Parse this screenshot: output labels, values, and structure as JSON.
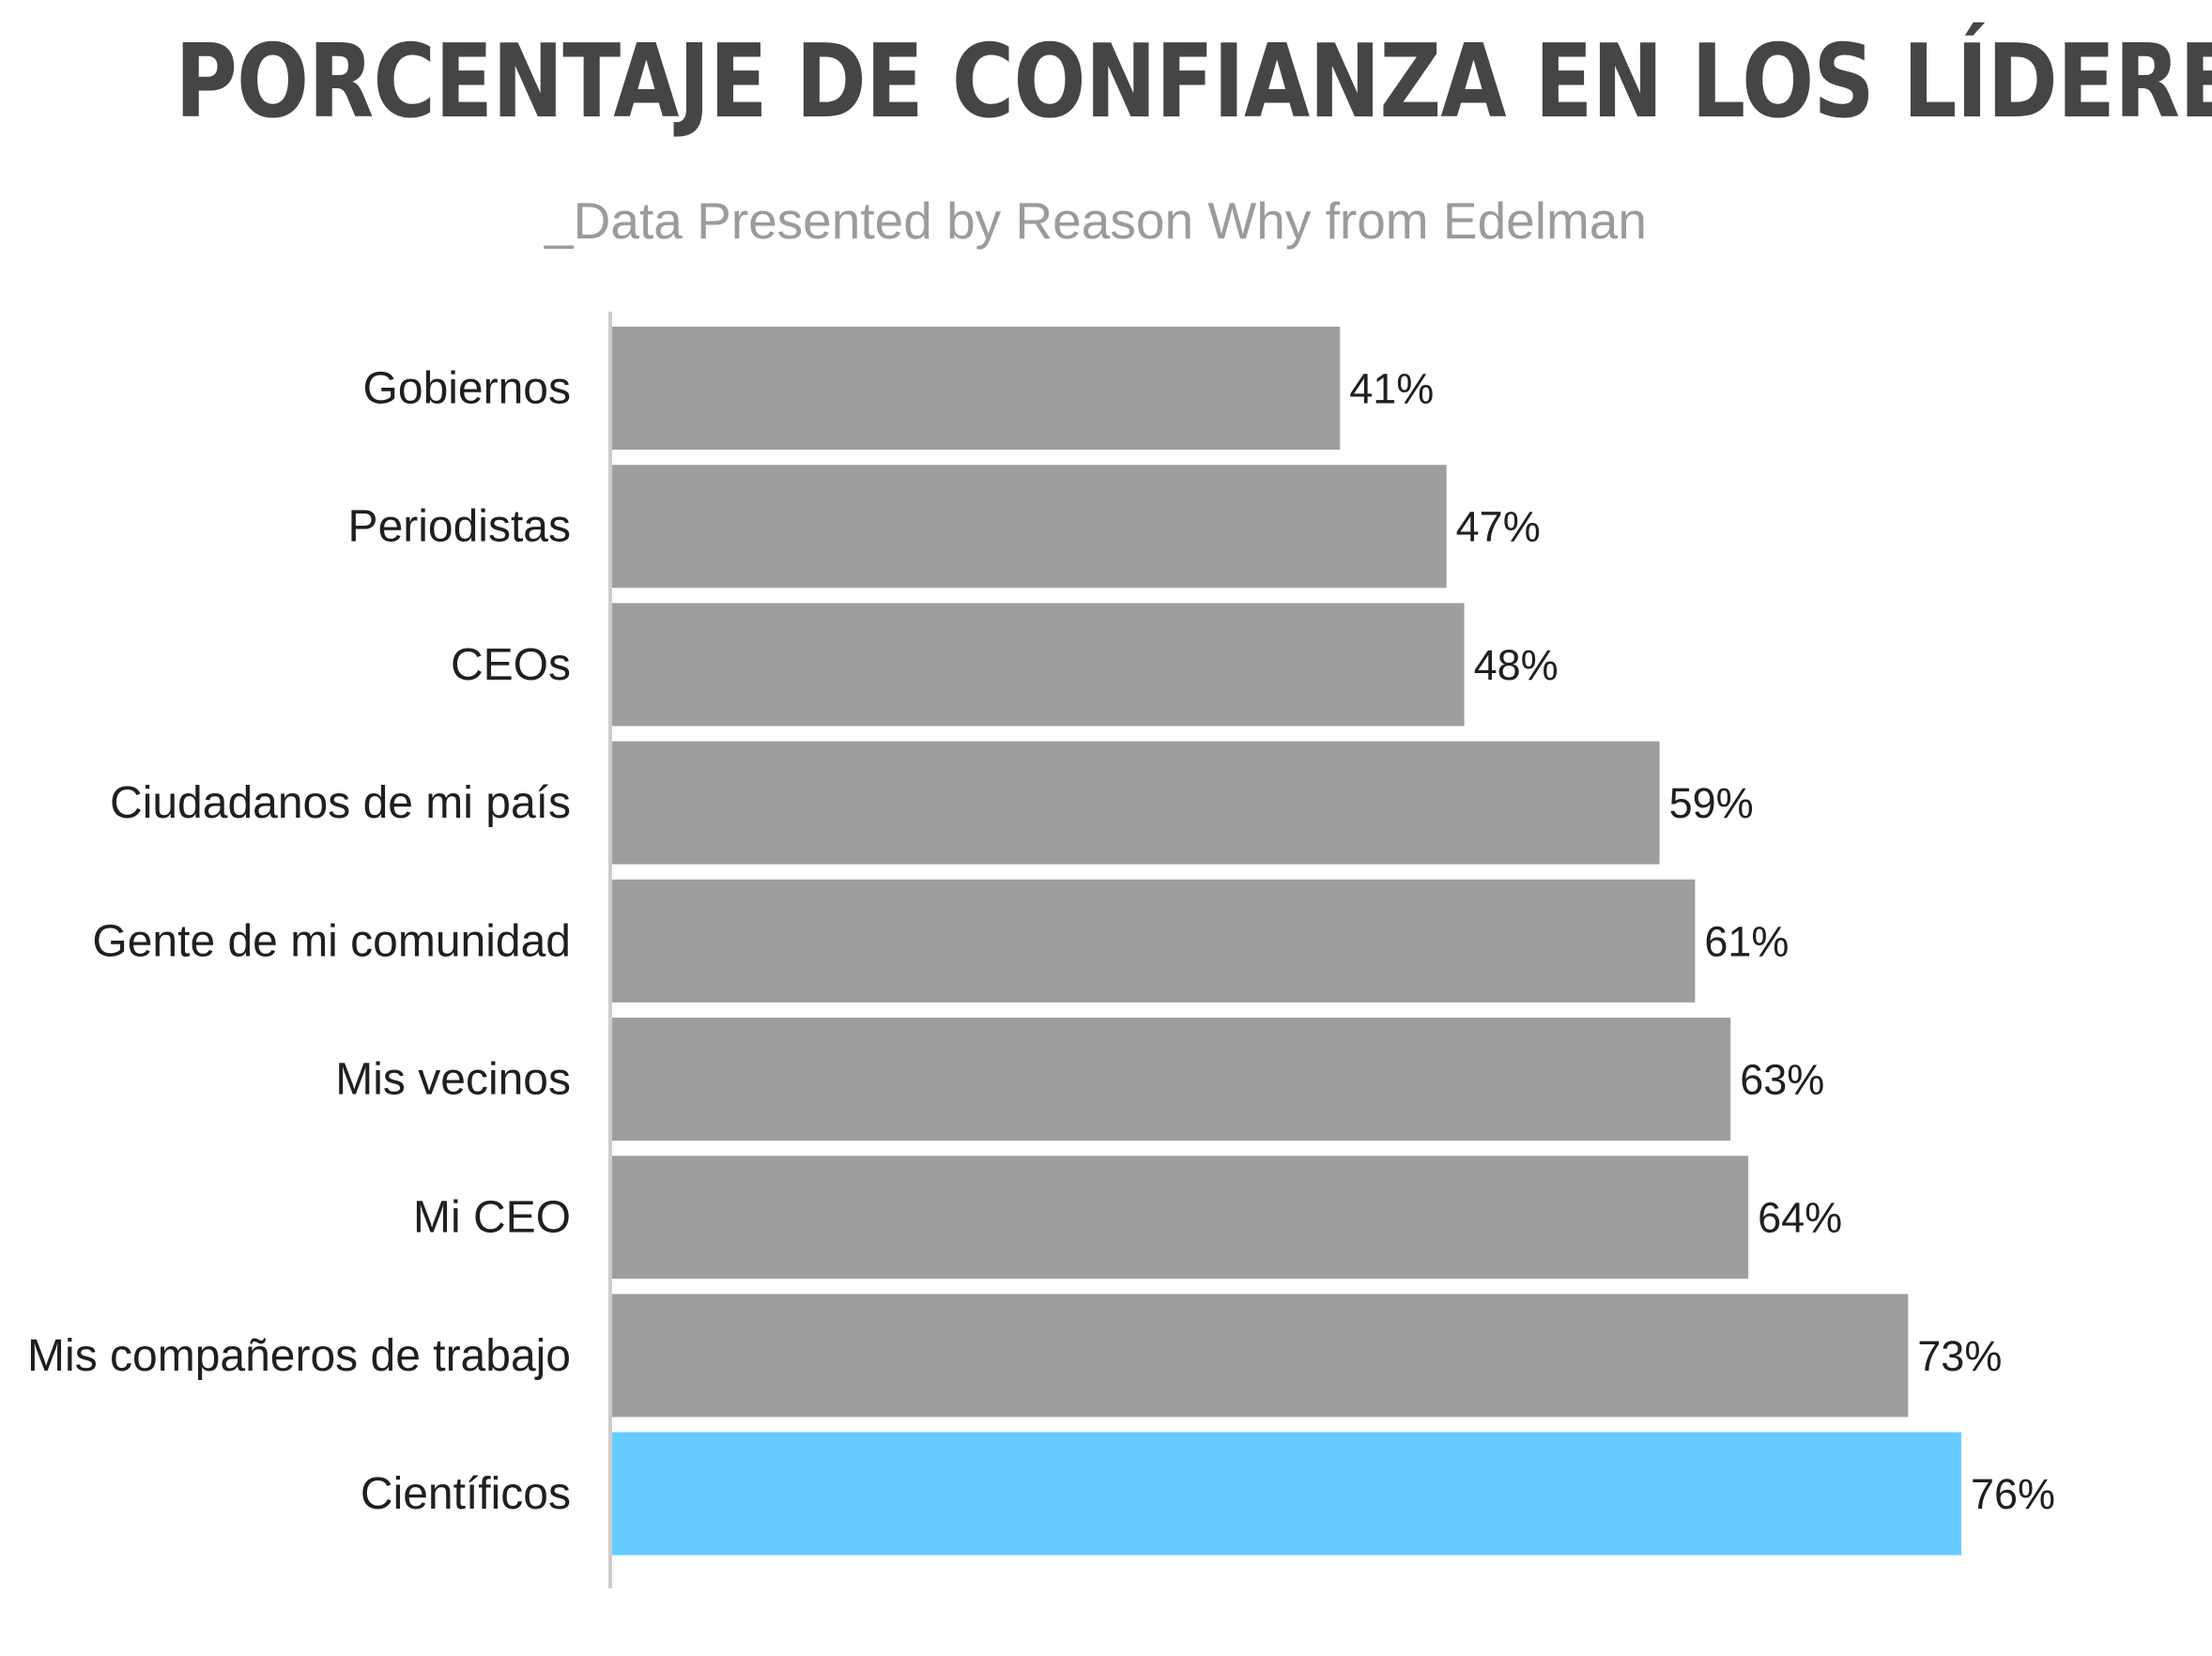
{
  "chart_data": {
    "type": "bar",
    "orientation": "horizontal",
    "title": "PORCENTAJE DE CONFIANZA EN LOS LÍDERES",
    "subtitle": "_Data Presented by Reason Why from Edelman",
    "categories": [
      "Gobiernos",
      "Periodistas",
      "CEOs",
      "Ciudadanos de mi país",
      "Gente de mi comunidad",
      "Mis vecinos",
      "Mi CEO",
      "Mis compañeros de trabajo",
      "Científicos"
    ],
    "values": [
      41,
      47,
      48,
      59,
      61,
      63,
      64,
      73,
      76
    ],
    "value_labels": [
      "41%",
      "47%",
      "48%",
      "59%",
      "61%",
      "63%",
      "64%",
      "73%",
      "76%"
    ],
    "unit": "%",
    "xlim": [
      0,
      76
    ],
    "grid": false,
    "legend": "none",
    "bar_color": "#9e9e9e",
    "highlight_color": "#66ccff",
    "highlight_category": "Científicos",
    "axis_color": "#cccccc"
  }
}
